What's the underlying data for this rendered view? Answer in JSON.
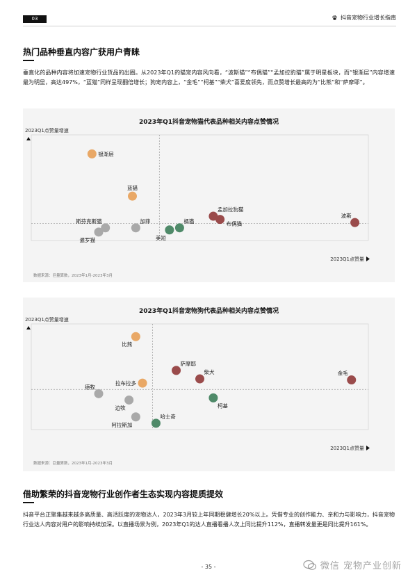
{
  "header": {
    "page_badge": "03",
    "report_title": "抖音宠物行业增长指南"
  },
  "section1": {
    "title": "热门品种垂直内容广获用户青睐",
    "body": "垂直化的品种内容将加速宠物行业货品的出圈。从2023年Q1的猫宠内容风向看，“波斯猫”“布偶猫”“孟加拉豹猫”属于明星板块，而“银渐层”内容增速最为明显，高达497%，“蓝猫”同样呈现翻倍增长；狗宠内容上，“金毛”“柯基”“柴犬”喜爱度领先，而点赞增长最高的为“比熊”和“萨摩耶”。"
  },
  "section2": {
    "title": "借助繁荣的抖音宠物行业创作者生态实现内容提质提效",
    "body": "抖音平台正聚集越来越多高质量、高活跃度的宠物达人，2023年3月较上年同期稳健增长20%以上。凭借专业的创作能力、亲和力与影响力，抖音宠物行业达人内容对用户的影响持续加深。以直播场景为例，2023年Q1的达人直播看播人次上同比提升112%，直播转发量更是同比提升161%。"
  },
  "colors": {
    "orange": "#e9a866",
    "gray": "#a9a9a9",
    "green": "#4f8a69",
    "red": "#9a4b4b"
  },
  "chart_data": [
    {
      "type": "scatter",
      "title": "2023年Q1抖音宠物猫代表品种相关内容点赞情况",
      "ylabel": "2023Q1点赞量增速",
      "xlabel": "2023Q1点赞量",
      "xlim": [
        0,
        100
      ],
      "ylim": [
        0,
        100
      ],
      "x_divider": 38,
      "y_divider": 16,
      "source": "数据来源：巨量算数，2023年1月-2023年3月",
      "points": [
        {
          "label": "银渐层",
          "x": 18,
          "y": 82,
          "color": "orange",
          "label_pos": "right"
        },
        {
          "label": "蓝猫",
          "x": 30,
          "y": 42,
          "color": "orange",
          "label_pos": "up"
        },
        {
          "label": "斯芬克斯猫",
          "x": 22,
          "y": 12,
          "color": "gray",
          "label_pos": "up-left"
        },
        {
          "label": "暹罗猫",
          "x": 20,
          "y": 8,
          "color": "gray",
          "label_pos": "down-left"
        },
        {
          "label": "加菲",
          "x": 31,
          "y": 12,
          "color": "gray",
          "label_pos": "up-right"
        },
        {
          "label": "美短",
          "x": 41,
          "y": 10,
          "color": "green",
          "label_pos": "down-left"
        },
        {
          "label": "橘猫",
          "x": 44,
          "y": 12,
          "color": "green",
          "label_pos": "up-right"
        },
        {
          "label": "孟加拉豹猫",
          "x": 54,
          "y": 23,
          "color": "red",
          "label_pos": "up-right"
        },
        {
          "label": "布偶猫",
          "x": 56,
          "y": 20,
          "color": "red",
          "label_pos": "right-down"
        },
        {
          "label": "波斯",
          "x": 96,
          "y": 17,
          "color": "red",
          "label_pos": "up-left"
        }
      ]
    },
    {
      "type": "scatter",
      "title": "2023年Q1抖音宠物狗代表品种相关内容点赞情况",
      "ylabel": "2023Q1点赞量增速",
      "xlabel": "2023Q1点赞量",
      "xlim": [
        0,
        100
      ],
      "ylim": [
        0,
        100
      ],
      "x_divider": 36,
      "y_divider": 38,
      "source": "数据来源：巨量算数，2023年1月-2023年3月",
      "points": [
        {
          "label": "比熊",
          "x": 31,
          "y": 88,
          "color": "orange",
          "label_pos": "down-left"
        },
        {
          "label": "拉布拉多",
          "x": 33,
          "y": 44,
          "color": "orange",
          "label_pos": "left"
        },
        {
          "label": "萨摩耶",
          "x": 43,
          "y": 56,
          "color": "red",
          "label_pos": "up-right"
        },
        {
          "label": "柴犬",
          "x": 50,
          "y": 48,
          "color": "red",
          "label_pos": "up-right"
        },
        {
          "label": "金毛",
          "x": 95,
          "y": 47,
          "color": "red",
          "label_pos": "up-left"
        },
        {
          "label": "柯基",
          "x": 54,
          "y": 30,
          "color": "green",
          "label_pos": "down-right"
        },
        {
          "label": "哈士奇",
          "x": 37,
          "y": 6,
          "color": "green",
          "label_pos": "up-right"
        },
        {
          "label": "德牧",
          "x": 20,
          "y": 34,
          "color": "gray",
          "label_pos": "up-left"
        },
        {
          "label": "边牧",
          "x": 29,
          "y": 28,
          "color": "gray",
          "label_pos": "down-left"
        },
        {
          "label": "阿拉斯加",
          "x": 31,
          "y": 12,
          "color": "gray",
          "label_pos": "down-left"
        }
      ]
    }
  ],
  "footer": {
    "page_number": "- 35 -",
    "watermark": "微信 宠物产业创新"
  }
}
